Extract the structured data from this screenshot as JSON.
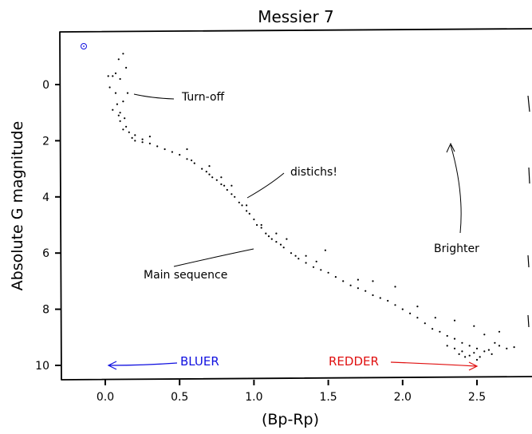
{
  "colors": {
    "blue": "#1010e0",
    "red": "#e01010",
    "ink": "#000000"
  },
  "chart_data": {
    "type": "scatter",
    "title": "Messier 7",
    "xlabel": "(Bp-Rp)",
    "ylabel": "Absolute G magnitude",
    "xlim": [
      -0.3,
      2.8
    ],
    "ylim": [
      10.5,
      -1.7
    ],
    "y_inverted": true,
    "grid": false,
    "xticks": [
      "0.0",
      "0.5",
      "1.0",
      "1.5",
      "2.0",
      "2.5"
    ],
    "yticks": [
      "0",
      "2",
      "4",
      "6",
      "8",
      "10"
    ],
    "annotations": {
      "turnoff": "Turn-off",
      "distichs": "distichs!",
      "main_sequence": "Main sequence",
      "brighter": "Brighter",
      "bluer": "BLUER",
      "redder": "REDDER"
    },
    "sun_marker": {
      "x": -0.14,
      "y": -1.33,
      "symbol": "⊙"
    },
    "series": [
      {
        "points": [
          [
            0.12,
            -1.1
          ],
          [
            0.09,
            -0.9
          ],
          [
            0.14,
            -0.6
          ],
          [
            0.05,
            -0.3
          ],
          [
            0.1,
            -0.2
          ],
          [
            0.03,
            0.1
          ],
          [
            0.07,
            0.3
          ],
          [
            0.12,
            0.6
          ],
          [
            0.05,
            0.9
          ],
          [
            0.09,
            1.1
          ],
          [
            0.1,
            1.3
          ],
          [
            0.14,
            1.5
          ],
          [
            0.12,
            1.6
          ],
          [
            0.16,
            1.7
          ],
          [
            0.18,
            1.9
          ],
          [
            0.2,
            2.0
          ],
          [
            0.25,
            2.05
          ],
          [
            0.3,
            2.1
          ],
          [
            0.35,
            2.2
          ],
          [
            0.4,
            2.3
          ],
          [
            0.45,
            2.4
          ],
          [
            0.5,
            2.5
          ],
          [
            0.55,
            2.65
          ],
          [
            0.58,
            2.7
          ],
          [
            0.6,
            2.8
          ],
          [
            0.65,
            3.0
          ],
          [
            0.68,
            3.1
          ],
          [
            0.7,
            3.2
          ],
          [
            0.72,
            3.3
          ],
          [
            0.75,
            3.4
          ],
          [
            0.78,
            3.55
          ],
          [
            0.8,
            3.6
          ],
          [
            0.82,
            3.75
          ],
          [
            0.85,
            3.9
          ],
          [
            0.87,
            4.0
          ],
          [
            0.9,
            4.2
          ],
          [
            0.92,
            4.3
          ],
          [
            0.95,
            4.5
          ],
          [
            0.97,
            4.6
          ],
          [
            1.0,
            4.8
          ],
          [
            1.02,
            5.0
          ],
          [
            1.05,
            5.1
          ],
          [
            1.08,
            5.3
          ],
          [
            1.1,
            5.4
          ],
          [
            1.12,
            5.5
          ],
          [
            1.15,
            5.6
          ],
          [
            1.18,
            5.7
          ],
          [
            1.2,
            5.8
          ],
          [
            1.25,
            6.0
          ],
          [
            1.28,
            6.1
          ],
          [
            1.3,
            6.2
          ],
          [
            1.35,
            6.35
          ],
          [
            1.4,
            6.5
          ],
          [
            1.45,
            6.6
          ],
          [
            1.5,
            6.7
          ],
          [
            1.55,
            6.85
          ],
          [
            1.6,
            7.0
          ],
          [
            1.65,
            7.15
          ],
          [
            1.7,
            7.25
          ],
          [
            1.75,
            7.35
          ],
          [
            1.8,
            7.5
          ],
          [
            1.85,
            7.6
          ],
          [
            1.9,
            7.7
          ],
          [
            1.95,
            7.85
          ],
          [
            2.0,
            8.0
          ],
          [
            2.05,
            8.15
          ],
          [
            2.1,
            8.3
          ],
          [
            2.15,
            8.5
          ],
          [
            2.2,
            8.7
          ],
          [
            2.25,
            8.8
          ],
          [
            2.3,
            8.95
          ],
          [
            2.35,
            9.05
          ],
          [
            2.4,
            9.2
          ],
          [
            2.45,
            9.3
          ],
          [
            2.5,
            9.4
          ],
          [
            2.55,
            9.5
          ],
          [
            2.6,
            9.6
          ],
          [
            2.65,
            9.3
          ],
          [
            2.7,
            9.4
          ],
          [
            2.75,
            9.35
          ],
          [
            2.38,
            9.6
          ],
          [
            2.42,
            9.7
          ],
          [
            2.48,
            9.55
          ],
          [
            2.52,
            9.7
          ],
          [
            2.58,
            9.45
          ],
          [
            2.35,
            9.4
          ],
          [
            2.3,
            9.3
          ],
          [
            2.4,
            9.5
          ],
          [
            2.45,
            9.65
          ],
          [
            2.5,
            9.8
          ],
          [
            2.62,
            9.2
          ],
          [
            2.55,
            8.9
          ],
          [
            2.65,
            8.8
          ],
          [
            2.48,
            8.6
          ],
          [
            2.35,
            8.4
          ],
          [
            2.22,
            8.3
          ],
          [
            2.1,
            7.9
          ],
          [
            1.95,
            7.2
          ],
          [
            1.8,
            7.0
          ],
          [
            1.7,
            6.95
          ],
          [
            1.48,
            5.9
          ],
          [
            1.42,
            6.3
          ],
          [
            1.35,
            6.1
          ],
          [
            1.22,
            5.5
          ],
          [
            1.15,
            5.3
          ],
          [
            1.05,
            5.0
          ],
          [
            0.95,
            4.3
          ],
          [
            0.85,
            3.6
          ],
          [
            0.78,
            3.3
          ],
          [
            0.7,
            2.9
          ],
          [
            0.55,
            2.3
          ],
          [
            0.3,
            1.85
          ],
          [
            0.25,
            1.95
          ],
          [
            0.2,
            1.8
          ],
          [
            0.07,
            -0.4
          ],
          [
            0.02,
            -0.3
          ],
          [
            0.15,
            0.3
          ],
          [
            0.1,
            1.0
          ],
          [
            0.08,
            0.7
          ],
          [
            0.13,
            1.2
          ]
        ]
      }
    ]
  }
}
